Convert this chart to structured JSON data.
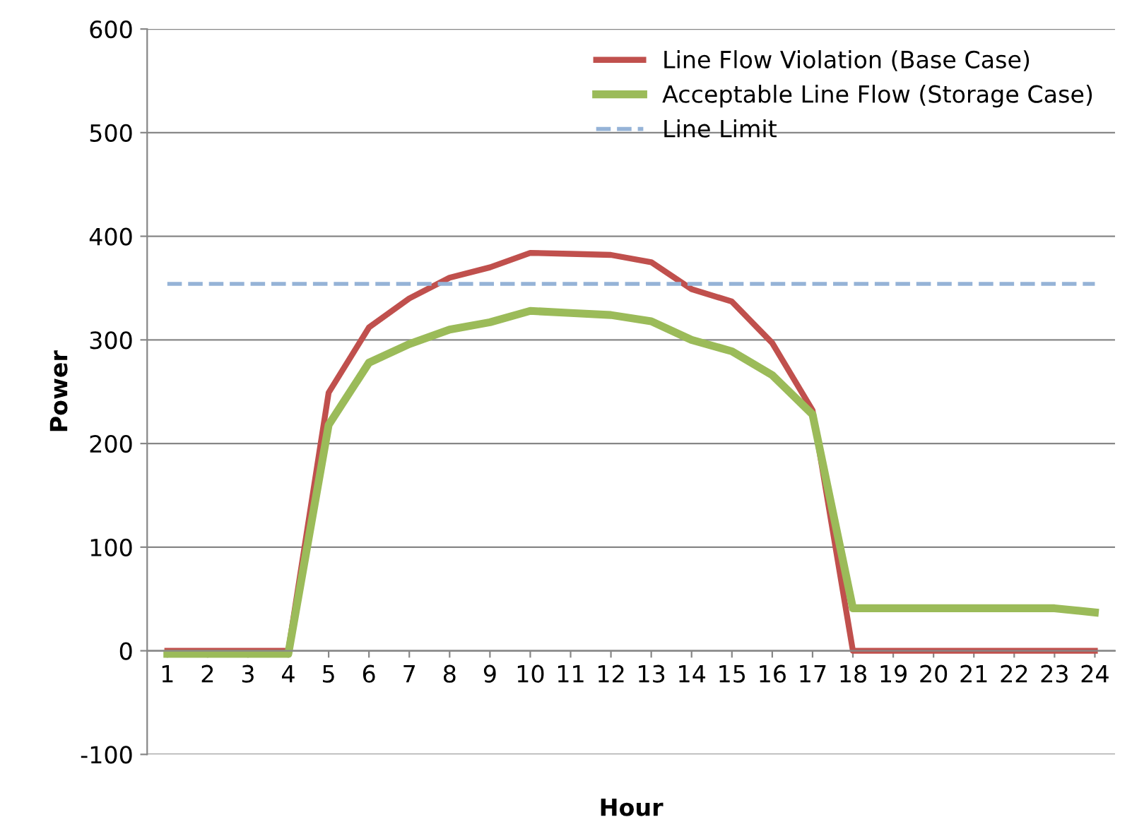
{
  "chart_data": {
    "type": "line",
    "xlabel": "Hour",
    "ylabel": "Power",
    "categories": [
      "1",
      "2",
      "3",
      "4",
      "5",
      "6",
      "7",
      "8",
      "9",
      "10",
      "11",
      "12",
      "13",
      "14",
      "15",
      "16",
      "17",
      "18",
      "19",
      "20",
      "21",
      "22",
      "23",
      "24"
    ],
    "series": [
      {
        "name": "Line Flow Violation (Base Case)",
        "color": "#c0504d",
        "values": [
          0,
          0,
          0,
          0,
          249,
          312,
          340,
          360,
          370,
          384,
          383,
          382,
          375,
          349,
          337,
          297,
          232,
          0,
          0,
          0,
          0,
          0,
          0,
          0
        ]
      },
      {
        "name": "Acceptable Line Flow (Storage Case)",
        "color": "#9bbb59",
        "values": [
          -3,
          -3,
          -3,
          -3,
          218,
          278,
          296,
          310,
          317,
          328,
          326,
          324,
          318,
          300,
          289,
          266,
          228,
          41,
          41,
          41,
          41,
          41,
          41,
          37
        ]
      },
      {
        "name": "Line Limit",
        "color": "#95b3d7",
        "line_style": "dashed",
        "values": [
          354,
          354,
          354,
          354,
          354,
          354,
          354,
          354,
          354,
          354,
          354,
          354,
          354,
          354,
          354,
          354,
          354,
          354,
          354,
          354,
          354,
          354,
          354,
          354
        ]
      }
    ],
    "ylim": [
      -100,
      600
    ],
    "yticks": [
      -100,
      0,
      100,
      200,
      300,
      400,
      500,
      600
    ],
    "grid": "y",
    "legend": "top right",
    "marker": "none"
  }
}
